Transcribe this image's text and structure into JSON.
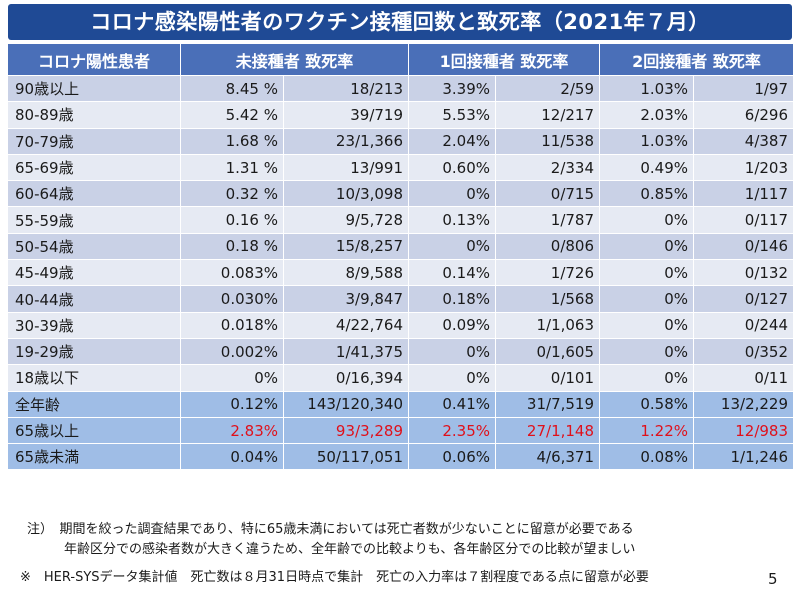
{
  "title": "コロナ感染陽性者のワクチン接種回数と致死率（2021年７月）",
  "headers": [
    "コロナ陽性患者",
    "未接種者 致死率",
    "1回接種者 致死率",
    "2回接種者 致死率"
  ],
  "rows": [
    {
      "age": "90歳以上",
      "u_rate": "8.45 %",
      "u_frac": "18/213",
      "o_rate": "3.39%",
      "o_frac": "2/59",
      "t_rate": "1.03%",
      "t_frac": "1/97"
    },
    {
      "age": "80-89歳",
      "u_rate": "5.42 %",
      "u_frac": "39/719",
      "o_rate": "5.53%",
      "o_frac": "12/217",
      "t_rate": "2.03%",
      "t_frac": "6/296"
    },
    {
      "age": "70-79歳",
      "u_rate": "1.68 %",
      "u_frac": "23/1,366",
      "o_rate": "2.04%",
      "o_frac": "11/538",
      "t_rate": "1.03%",
      "t_frac": "4/387"
    },
    {
      "age": "65-69歳",
      "u_rate": "1.31 %",
      "u_frac": "13/991",
      "o_rate": "0.60%",
      "o_frac": "2/334",
      "t_rate": "0.49%",
      "t_frac": "1/203"
    },
    {
      "age": "60-64歳",
      "u_rate": "0.32 %",
      "u_frac": "10/3,098",
      "o_rate": "0%",
      "o_frac": "0/715",
      "t_rate": "0.85%",
      "t_frac": "1/117"
    },
    {
      "age": "55-59歳",
      "u_rate": "0.16 %",
      "u_frac": "9/5,728",
      "o_rate": "0.13%",
      "o_frac": "1/787",
      "t_rate": "0%",
      "t_frac": "0/117"
    },
    {
      "age": "50-54歳",
      "u_rate": "0.18 %",
      "u_frac": "15/8,257",
      "o_rate": "0%",
      "o_frac": "0/806",
      "t_rate": "0%",
      "t_frac": "0/146"
    },
    {
      "age": "45-49歳",
      "u_rate": "0.083%",
      "u_frac": "8/9,588",
      "o_rate": "0.14%",
      "o_frac": "1/726",
      "t_rate": "0%",
      "t_frac": "0/132"
    },
    {
      "age": "40-44歳",
      "u_rate": "0.030%",
      "u_frac": "3/9,847",
      "o_rate": "0.18%",
      "o_frac": "1/568",
      "t_rate": "0%",
      "t_frac": "0/127"
    },
    {
      "age": "30-39歳",
      "u_rate": "0.018%",
      "u_frac": "4/22,764",
      "o_rate": "0.09%",
      "o_frac": "1/1,063",
      "t_rate": "0%",
      "t_frac": "0/244"
    },
    {
      "age": "19-29歳",
      "u_rate": "0.002%",
      "u_frac": "1/41,375",
      "o_rate": "0%",
      "o_frac": "0/1,605",
      "t_rate": "0%",
      "t_frac": "0/352"
    },
    {
      "age": "18歳以下",
      "u_rate": "0%",
      "u_frac": "0/16,394",
      "o_rate": "0%",
      "o_frac": "0/101",
      "t_rate": "0%",
      "t_frac": "0/11"
    }
  ],
  "summary_rows": [
    {
      "age": "全年齢",
      "u_rate": "0.12%",
      "u_frac": "143/120,340",
      "o_rate": "0.41%",
      "o_frac": "31/7,519",
      "t_rate": "0.58%",
      "t_frac": "13/2,229"
    },
    {
      "age": "65歳以上",
      "u_rate": "2.83%",
      "u_frac": "93/3,289",
      "o_rate": "2.35%",
      "o_frac": "27/1,148",
      "t_rate": "1.22%",
      "t_frac": "12/983"
    },
    {
      "age": "65歳未満",
      "u_rate": "0.04%",
      "u_frac": "50/117,051",
      "o_rate": "0.06%",
      "o_frac": "4/6,371",
      "t_rate": "0.08%",
      "t_frac": "1/1,246"
    }
  ],
  "highlight_color": "#e0101a",
  "notes": [
    "注）　期間を絞った調査結果であり、特に65歳未満においては死亡者数が少ないことに留意が必要である",
    "年齢区分での感染者数が大きく違うため、全年齢での比較よりも、各年齢区分での比較が望ましい"
  ],
  "footnote": "※　HER-SYSデータ集計値　死亡数は８月31日時点で集計　死亡の入力率は７割程度である点に留意が必要",
  "page_number": "5"
}
